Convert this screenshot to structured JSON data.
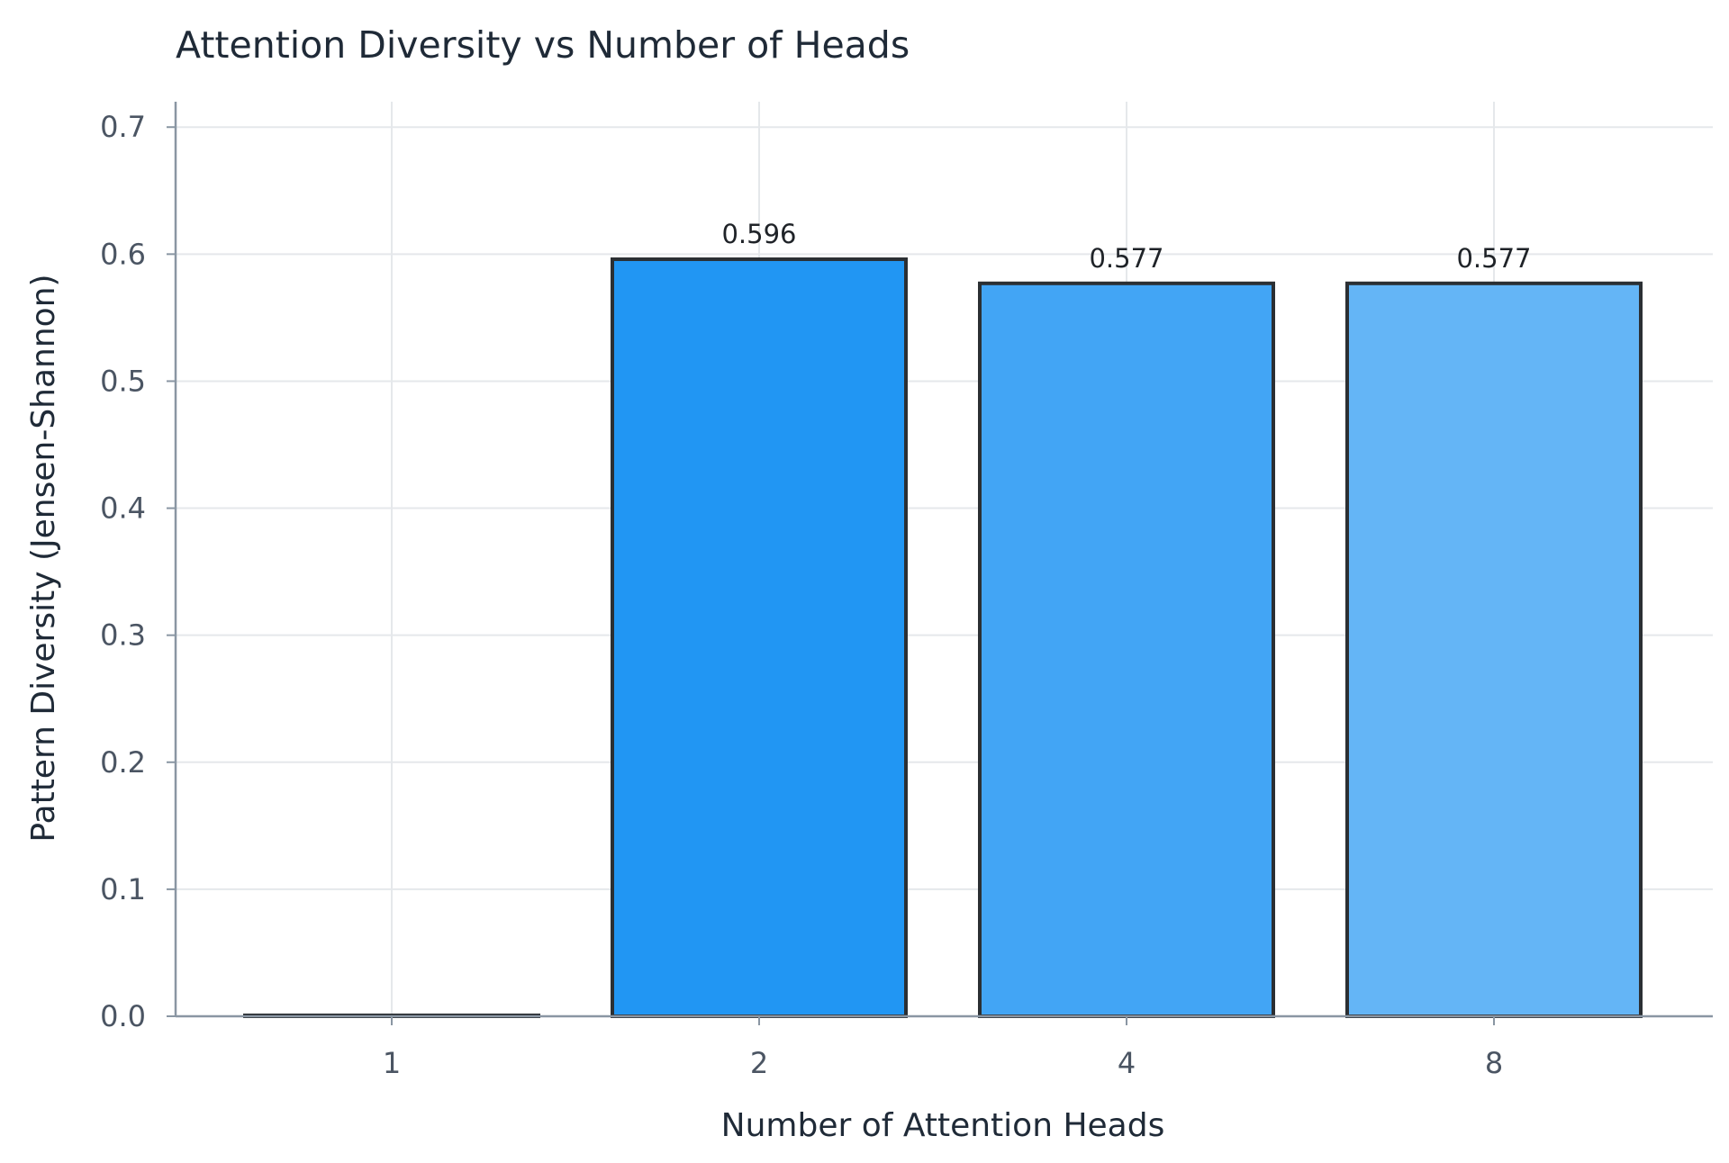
{
  "chart_data": {
    "type": "bar",
    "title": "Attention Diversity vs Number of Heads",
    "xlabel": "Number of Attention Heads",
    "ylabel": "Pattern Diversity (Jensen-Shannon)",
    "categories": [
      "1",
      "2",
      "4",
      "8"
    ],
    "values": [
      0.0,
      0.596,
      0.577,
      0.577
    ],
    "data_labels": [
      "",
      "0.596",
      "0.577",
      "0.577"
    ],
    "ylim": [
      0,
      0.72
    ],
    "yticks": [
      0.0,
      0.1,
      0.2,
      0.3,
      0.4,
      0.5,
      0.6,
      0.7
    ],
    "ytick_labels": [
      "0.0",
      "0.1",
      "0.2",
      "0.3",
      "0.4",
      "0.5",
      "0.6",
      "0.7"
    ],
    "grid": true,
    "bar_colors": [
      "#1976d2",
      "#2196f3",
      "#42a5f5",
      "#64b5f6"
    ],
    "bar_edge_color": "#2b2f33"
  }
}
